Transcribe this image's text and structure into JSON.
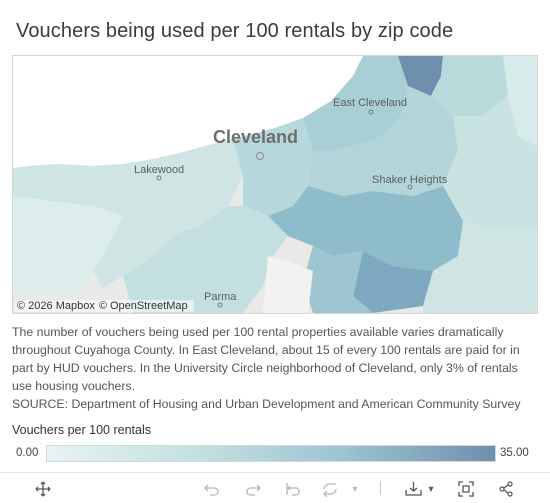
{
  "title": "Vouchers being used per 100 rentals by zip code",
  "map": {
    "labels": {
      "cleveland": "Cleveland",
      "east_cleveland": "East Cleveland",
      "lakewood": "Lakewood",
      "shaker_heights": "Shaker Heights",
      "parma": "Parma"
    },
    "attribution": {
      "mapbox": "© 2026 Mapbox",
      "osm": "© OpenStreetMap"
    },
    "colors": {
      "lake": "#ffffff",
      "land": "#e9e9e7",
      "low": "#e8f3f2",
      "high": "#6f8fae"
    }
  },
  "description": [
    "The number of vouchers being used per 100 rental properties available varies dramatically throughout Cuyahoga County. In East Cleveland, about 15 of every 100 rentals are paid for in part by HUD vouchers. In the University Circle neighborhood of Cleveland, only 3% of rentals use housing vouchers.",
    "SOURCE: Department of Housing and Urban Development and American Community Survey"
  ],
  "legend": {
    "title": "Vouchers per 100 rentals",
    "min": "0.00",
    "max": "35.00"
  },
  "toolbar": {
    "icons": [
      "move-icon",
      "undo-icon",
      "redo-icon",
      "revert-icon",
      "refresh-icon",
      "download-icon",
      "fullscreen-icon",
      "share-icon"
    ]
  }
}
